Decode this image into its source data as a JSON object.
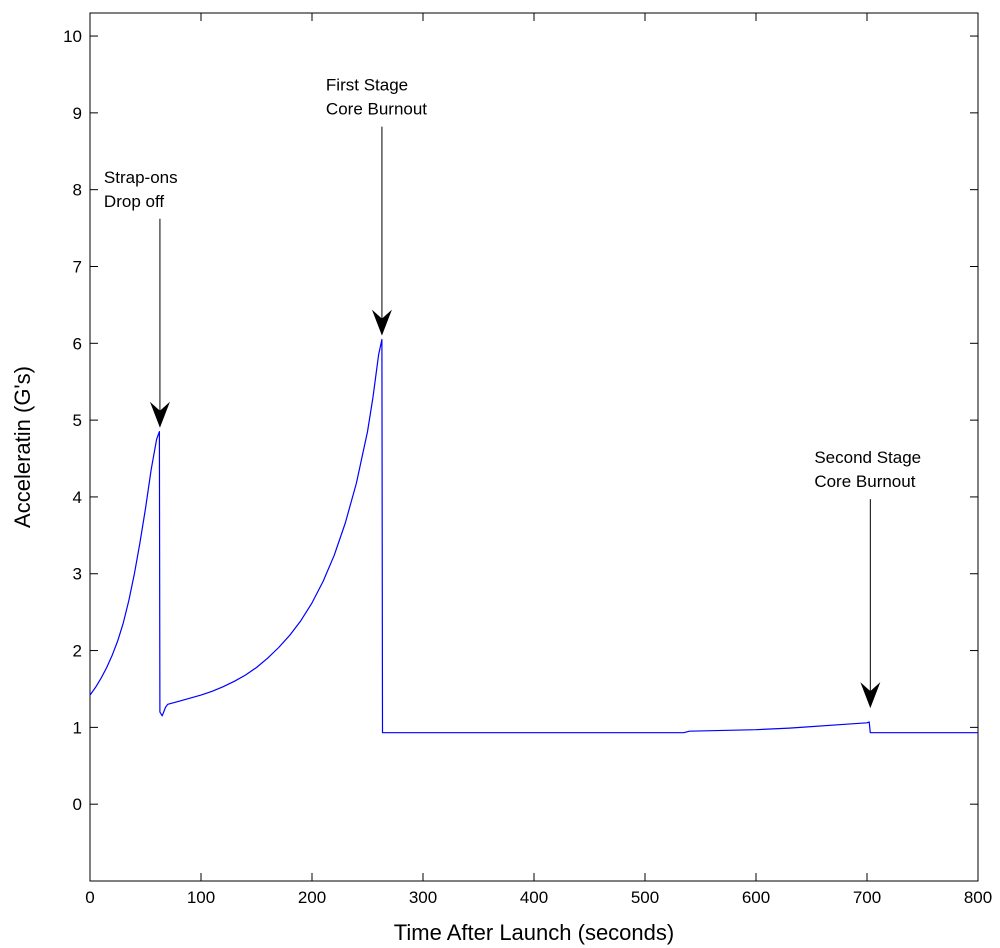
{
  "chart_data": {
    "type": "line",
    "title": "",
    "xlabel": "Time After Launch (seconds)",
    "ylabel": "Acceleratin (G's)",
    "xlim": [
      0,
      800
    ],
    "ylim": [
      -1,
      10.3
    ],
    "xticks": [
      0,
      100,
      200,
      300,
      400,
      500,
      600,
      700,
      800
    ],
    "yticks": [
      0,
      1,
      2,
      3,
      4,
      5,
      6,
      7,
      8,
      9,
      10
    ],
    "grid": false,
    "legend": "none",
    "line_color": "#0000ff",
    "series": [
      {
        "x": [
          0,
          5,
          10,
          15,
          20,
          25,
          30,
          35,
          40,
          45,
          50,
          55,
          60,
          62.5,
          63,
          65,
          68,
          70,
          80,
          90,
          100,
          110,
          120,
          130,
          140,
          150,
          160,
          170,
          180,
          190,
          200,
          210,
          220,
          230,
          240,
          250,
          255,
          260,
          263,
          263.5,
          265,
          270,
          300,
          400,
          535,
          540,
          600,
          630,
          640,
          680,
          700,
          702,
          703,
          705,
          750,
          800
        ],
        "y": [
          1.42,
          1.52,
          1.64,
          1.78,
          1.94,
          2.13,
          2.36,
          2.65,
          3.0,
          3.4,
          3.85,
          4.35,
          4.75,
          4.85,
          1.2,
          1.15,
          1.26,
          1.3,
          1.34,
          1.38,
          1.42,
          1.47,
          1.53,
          1.6,
          1.68,
          1.78,
          1.9,
          2.04,
          2.2,
          2.39,
          2.62,
          2.9,
          3.24,
          3.66,
          4.18,
          4.85,
          5.3,
          5.85,
          6.05,
          0.93,
          0.93,
          0.93,
          0.93,
          0.93,
          0.93,
          0.95,
          0.97,
          0.99,
          1.0,
          1.04,
          1.06,
          1.07,
          0.93,
          0.93,
          0.93,
          0.93
        ]
      }
    ],
    "annotations": [
      {
        "lines": [
          "Strap-ons",
          "Drop off"
        ],
        "x": 63,
        "y": 4.9
      },
      {
        "lines": [
          "First Stage",
          "Core Burnout"
        ],
        "x": 263,
        "y": 6.1
      },
      {
        "lines": [
          "Second Stage",
          "Core Burnout"
        ],
        "x": 703,
        "y": 1.25
      }
    ]
  }
}
